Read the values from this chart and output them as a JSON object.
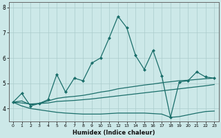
{
  "xlabel": "Humidex (Indice chaleur)",
  "background_color": "#cce8e8",
  "grid_color": "#aacccc",
  "line_color": "#1a6e6a",
  "x_data": [
    0,
    1,
    2,
    3,
    4,
    5,
    6,
    7,
    8,
    9,
    10,
    11,
    12,
    13,
    14,
    15,
    16,
    17,
    18,
    19,
    20,
    21,
    22,
    23
  ],
  "line1": [
    4.25,
    4.6,
    4.1,
    4.2,
    4.35,
    5.35,
    4.65,
    5.2,
    5.1,
    5.8,
    6.0,
    6.8,
    7.65,
    7.2,
    6.1,
    5.55,
    6.3,
    5.3,
    3.65,
    5.05,
    5.1,
    5.45,
    5.25,
    5.2
  ],
  "line2": [
    4.25,
    4.3,
    4.15,
    4.2,
    4.3,
    4.4,
    4.45,
    4.48,
    4.52,
    4.58,
    4.65,
    4.7,
    4.78,
    4.83,
    4.88,
    4.93,
    4.97,
    5.02,
    5.06,
    5.1,
    5.12,
    5.15,
    5.18,
    5.2
  ],
  "line3": [
    4.25,
    4.22,
    4.18,
    4.2,
    4.22,
    4.28,
    4.3,
    4.32,
    4.35,
    4.38,
    4.42,
    4.46,
    4.5,
    4.54,
    4.58,
    4.62,
    4.66,
    4.7,
    4.74,
    4.78,
    4.82,
    4.86,
    4.9,
    4.95
  ],
  "line4": [
    4.25,
    4.1,
    4.0,
    3.95,
    3.9,
    3.85,
    3.82,
    3.8,
    3.78,
    3.78,
    3.78,
    3.8,
    3.82,
    3.82,
    3.82,
    3.82,
    3.8,
    3.78,
    3.65,
    3.68,
    3.75,
    3.82,
    3.88,
    3.9
  ],
  "ylim": [
    3.5,
    8.2
  ],
  "xlim": [
    -0.5,
    23.5
  ],
  "yticks": [
    4,
    5,
    6,
    7,
    8
  ],
  "xtick_labels": [
    "0",
    "1",
    "2",
    "3",
    "4",
    "5",
    "6",
    "7",
    "8",
    "9",
    "10",
    "11",
    "12",
    "13",
    "14",
    "15",
    "16",
    "17",
    "18",
    "19",
    "20",
    "21",
    "22",
    "23"
  ]
}
